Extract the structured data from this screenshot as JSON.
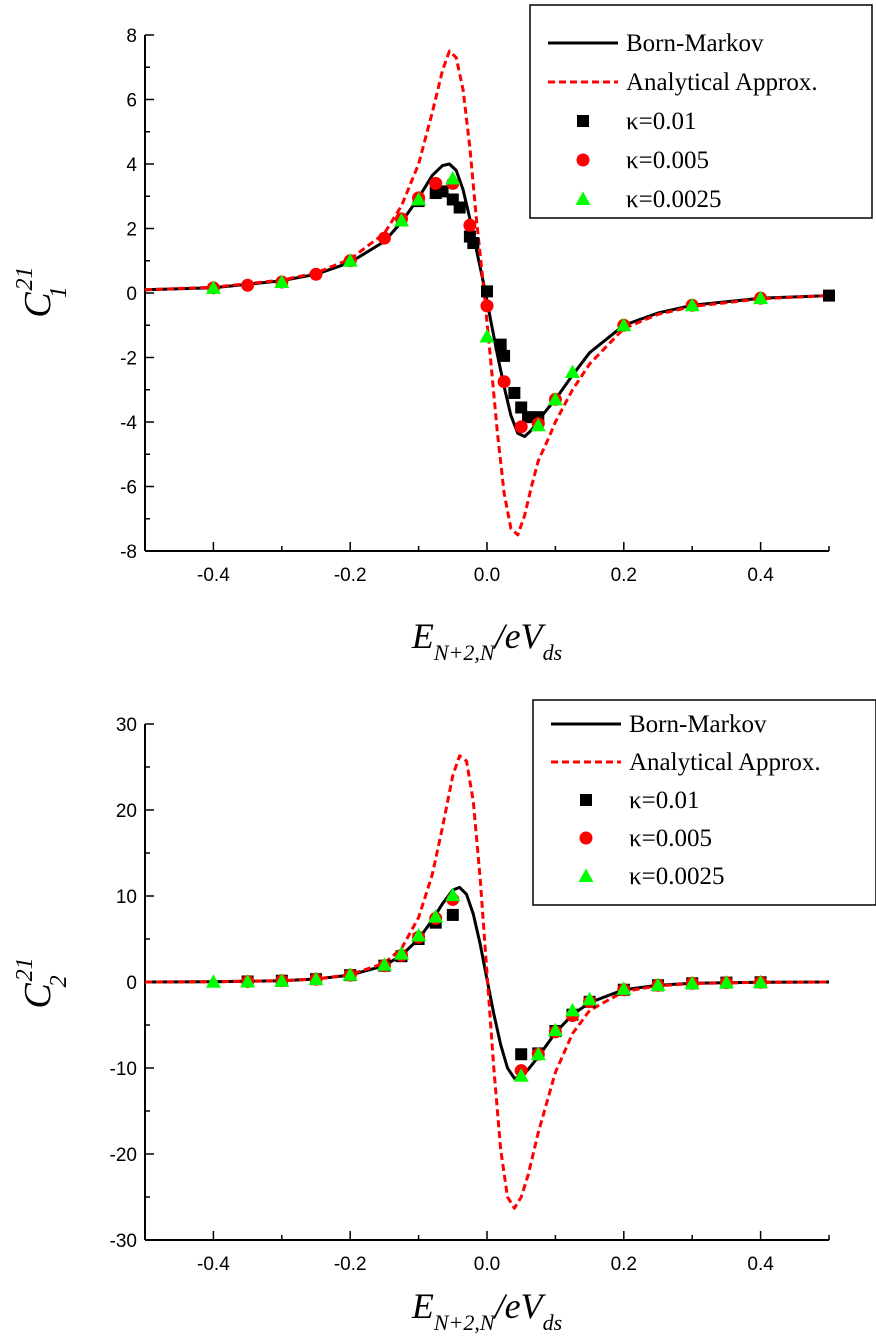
{
  "chart_data": [
    {
      "type": "line",
      "ylabel_main": "C",
      "ylabel_sup": "21",
      "ylabel_sub": "1",
      "xlabel_main": "E",
      "xlabel_sub1": "N+2,N",
      "xlabel_mid": "/eV",
      "xlabel_sub2": "ds",
      "xlim": [
        -0.5,
        0.5
      ],
      "ylim": [
        -8,
        8
      ],
      "x_ticks": [
        -0.4,
        -0.2,
        0.0,
        0.2,
        0.4
      ],
      "x_tick_labels": [
        "-0.4",
        "-0.2",
        "0.0",
        "0.2",
        "0.4"
      ],
      "y_ticks": [
        -8,
        -6,
        -4,
        -2,
        0,
        2,
        4,
        6,
        8
      ],
      "y_tick_labels": [
        "-8",
        "-6",
        "-4",
        "-2",
        "0",
        "2",
        "4",
        "6",
        "8"
      ],
      "legend_position": "top-right",
      "grid": false,
      "series": [
        {
          "name": "Born-Markov",
          "style": "line",
          "color": "#000000",
          "x": [
            -0.5,
            -0.4,
            -0.3,
            -0.25,
            -0.2,
            -0.15,
            -0.125,
            -0.1,
            -0.08,
            -0.065,
            -0.055,
            -0.045,
            -0.035,
            -0.025,
            -0.015,
            -0.005,
            0.005,
            0.015,
            0.025,
            0.035,
            0.045,
            0.055,
            0.065,
            0.075,
            0.09,
            0.1,
            0.125,
            0.15,
            0.2,
            0.25,
            0.3,
            0.4,
            0.5
          ],
          "y": [
            0.1,
            0.16,
            0.38,
            0.58,
            0.95,
            1.6,
            2.2,
            2.95,
            3.65,
            3.95,
            4.0,
            3.8,
            3.2,
            2.3,
            1.3,
            0.3,
            -0.8,
            -1.9,
            -2.9,
            -3.8,
            -4.35,
            -4.45,
            -4.25,
            -3.95,
            -3.55,
            -3.3,
            -2.55,
            -1.85,
            -1.0,
            -0.62,
            -0.38,
            -0.16,
            -0.08
          ]
        },
        {
          "name": "Analytical Approx.",
          "style": "dashed",
          "color": "#ff0000",
          "x": [
            -0.5,
            -0.4,
            -0.3,
            -0.25,
            -0.2,
            -0.15,
            -0.125,
            -0.1,
            -0.08,
            -0.065,
            -0.055,
            -0.045,
            -0.035,
            -0.025,
            -0.015,
            -0.005,
            0.005,
            0.015,
            0.025,
            0.035,
            0.045,
            0.055,
            0.065,
            0.075,
            0.09,
            0.1,
            0.125,
            0.15,
            0.2,
            0.25,
            0.3,
            0.4,
            0.5
          ],
          "y": [
            0.1,
            0.18,
            0.4,
            0.62,
            1.05,
            1.85,
            2.7,
            4.0,
            5.6,
            6.9,
            7.5,
            7.3,
            6.3,
            4.5,
            2.2,
            0.2,
            -2.0,
            -4.3,
            -6.2,
            -7.3,
            -7.5,
            -6.9,
            -6.0,
            -5.2,
            -4.5,
            -4.0,
            -3.0,
            -2.2,
            -1.1,
            -0.66,
            -0.42,
            -0.18,
            -0.08
          ]
        },
        {
          "name": "κ=0.01",
          "style": "marker-square",
          "color": "#000000",
          "x": [
            -0.1,
            -0.075,
            -0.065,
            -0.05,
            -0.04,
            -0.025,
            -0.02,
            0.0,
            0.02,
            0.025,
            0.04,
            0.05,
            0.06,
            0.075,
            0.5
          ],
          "y": [
            2.85,
            3.1,
            3.15,
            2.9,
            2.65,
            1.75,
            1.55,
            0.05,
            -1.6,
            -1.95,
            -3.1,
            -3.55,
            -3.85,
            -3.85,
            -0.08
          ]
        },
        {
          "name": "κ=0.005",
          "style": "marker-circle",
          "color": "#ff0000",
          "x": [
            -0.4,
            -0.35,
            -0.3,
            -0.25,
            -0.2,
            -0.15,
            -0.125,
            -0.1,
            -0.075,
            -0.05,
            -0.025,
            0.0,
            0.025,
            0.05,
            0.075,
            0.1,
            0.2,
            0.3,
            0.4
          ],
          "y": [
            0.16,
            0.24,
            0.34,
            0.58,
            1.0,
            1.7,
            2.3,
            2.95,
            3.4,
            3.4,
            2.1,
            -0.4,
            -2.75,
            -4.15,
            -4.05,
            -3.3,
            -1.0,
            -0.38,
            -0.16
          ]
        },
        {
          "name": "κ=0.0025",
          "style": "marker-triangle",
          "color": "#00ff00",
          "x": [
            -0.4,
            -0.3,
            -0.2,
            -0.125,
            -0.1,
            -0.05,
            0.0,
            0.075,
            0.1,
            0.125,
            0.2,
            0.3,
            0.4
          ],
          "y": [
            0.16,
            0.34,
            1.0,
            2.25,
            2.9,
            3.55,
            -1.35,
            -4.1,
            -3.3,
            -2.45,
            -1.0,
            -0.38,
            -0.16
          ]
        }
      ]
    },
    {
      "type": "line",
      "ylabel_main": "C",
      "ylabel_sup": "21",
      "ylabel_sub": "2",
      "xlabel_main": "E",
      "xlabel_sub1": "N+2,N",
      "xlabel_mid": "/eV",
      "xlabel_sub2": "ds",
      "xlim": [
        -0.5,
        0.5
      ],
      "ylim": [
        -30,
        30
      ],
      "x_ticks": [
        -0.4,
        -0.2,
        0.0,
        0.2,
        0.4
      ],
      "x_tick_labels": [
        "-0.4",
        "-0.2",
        "0.0",
        "0.2",
        "0.4"
      ],
      "y_ticks": [
        -30,
        -20,
        -10,
        0,
        10,
        20,
        30
      ],
      "y_tick_labels": [
        "-30",
        "-20",
        "-10",
        "0",
        "10",
        "20",
        "30"
      ],
      "legend_position": "top-right",
      "grid": false,
      "series": [
        {
          "name": "Born-Markov",
          "style": "line",
          "color": "#000000",
          "x": [
            -0.5,
            -0.4,
            -0.3,
            -0.25,
            -0.2,
            -0.15,
            -0.125,
            -0.1,
            -0.08,
            -0.065,
            -0.05,
            -0.04,
            -0.03,
            -0.02,
            -0.01,
            0.0,
            0.01,
            0.02,
            0.03,
            0.04,
            0.05,
            0.06,
            0.075,
            0.1,
            0.125,
            0.15,
            0.2,
            0.25,
            0.3,
            0.4,
            0.5
          ],
          "y": [
            0.0,
            0.03,
            0.15,
            0.35,
            0.8,
            1.9,
            3.1,
            5.0,
            7.2,
            9.1,
            10.7,
            11.0,
            10.2,
            7.9,
            4.4,
            0.3,
            -3.7,
            -7.3,
            -10.0,
            -11.2,
            -11.0,
            -10.2,
            -8.7,
            -5.9,
            -3.8,
            -2.4,
            -0.9,
            -0.38,
            -0.15,
            -0.03,
            0.0
          ]
        },
        {
          "name": "Analytical Approx.",
          "style": "dashed",
          "color": "#ff0000",
          "x": [
            -0.5,
            -0.4,
            -0.3,
            -0.25,
            -0.2,
            -0.15,
            -0.125,
            -0.1,
            -0.08,
            -0.065,
            -0.05,
            -0.04,
            -0.03,
            -0.02,
            -0.01,
            0.0,
            0.01,
            0.02,
            0.03,
            0.04,
            0.05,
            0.06,
            0.075,
            0.1,
            0.125,
            0.15,
            0.2,
            0.25,
            0.3,
            0.4,
            0.5
          ],
          "y": [
            0.0,
            0.03,
            0.15,
            0.35,
            0.85,
            2.2,
            3.9,
            7.5,
            12.5,
            18.0,
            24.0,
            26.3,
            25.7,
            21.0,
            12.0,
            1.0,
            -10.0,
            -19.5,
            -25.0,
            -26.3,
            -25.0,
            -22.5,
            -17.5,
            -10.5,
            -6.0,
            -3.3,
            -1.1,
            -0.45,
            -0.18,
            -0.04,
            0.0
          ]
        },
        {
          "name": "κ=0.01",
          "style": "marker-square",
          "color": "#000000",
          "x": [
            -0.35,
            -0.3,
            -0.25,
            -0.2,
            -0.15,
            -0.125,
            -0.1,
            -0.075,
            -0.05,
            0.05,
            0.075,
            0.1,
            0.125,
            0.15,
            0.2,
            0.25,
            0.3,
            0.35,
            0.4
          ],
          "y": [
            0.06,
            0.15,
            0.33,
            0.8,
            1.9,
            3.0,
            5.0,
            6.9,
            7.8,
            -8.4,
            -8.3,
            -5.7,
            -3.8,
            -2.3,
            -0.9,
            -0.38,
            -0.15,
            -0.07,
            -0.03
          ]
        },
        {
          "name": "κ=0.005",
          "style": "marker-circle",
          "color": "#ff0000",
          "x": [
            -0.35,
            -0.3,
            -0.25,
            -0.2,
            -0.15,
            -0.125,
            -0.1,
            -0.075,
            -0.05,
            0.05,
            0.075,
            0.1,
            0.125,
            0.15,
            0.2,
            0.25,
            0.3,
            0.35,
            0.4
          ],
          "y": [
            0.06,
            0.15,
            0.33,
            0.8,
            1.9,
            3.1,
            5.2,
            7.4,
            9.6,
            -10.3,
            -8.4,
            -5.8,
            -3.9,
            -2.3,
            -0.9,
            -0.38,
            -0.15,
            -0.07,
            -0.03
          ]
        },
        {
          "name": "κ=0.0025",
          "style": "marker-triangle",
          "color": "#00ff00",
          "x": [
            -0.4,
            -0.35,
            -0.3,
            -0.25,
            -0.2,
            -0.15,
            -0.125,
            -0.1,
            -0.075,
            -0.05,
            0.05,
            0.075,
            0.1,
            0.125,
            0.15,
            0.2,
            0.25,
            0.3,
            0.35,
            0.4
          ],
          "y": [
            0.03,
            0.06,
            0.15,
            0.35,
            0.85,
            2.0,
            3.3,
            5.4,
            7.6,
            10.1,
            -10.9,
            -8.4,
            -5.6,
            -3.3,
            -2.0,
            -0.8,
            -0.35,
            -0.14,
            -0.06,
            -0.03
          ]
        }
      ]
    }
  ]
}
